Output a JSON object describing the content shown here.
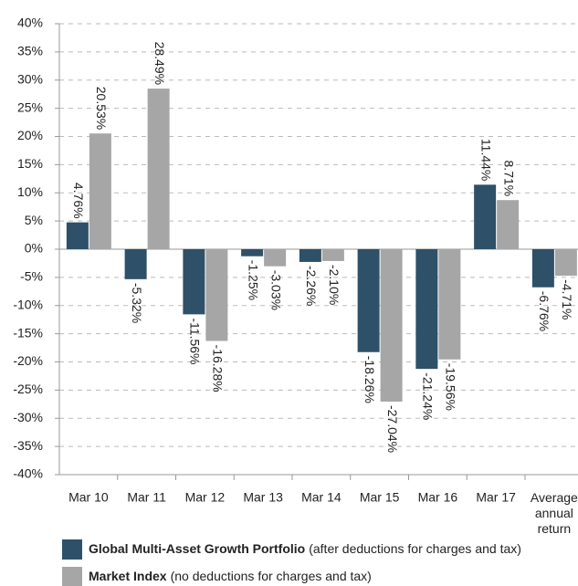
{
  "chart_data": {
    "type": "bar",
    "categories": [
      "Mar 10",
      "Mar 11",
      "Mar 12",
      "Mar 13",
      "Mar 14",
      "Mar 15",
      "Mar 16",
      "Mar 17",
      "Average annual return"
    ],
    "series": [
      {
        "name": "Global Multi-Asset Growth Portfolio",
        "note": "(after deductions for charges and tax)",
        "color": "#2e5068",
        "values": [
          4.76,
          -5.32,
          -11.56,
          -1.25,
          -2.26,
          -18.26,
          -21.24,
          11.44,
          -6.76
        ],
        "value_labels": [
          "4.76%",
          "-5.32%",
          "-11.56%",
          "-1.25%",
          "-2.26%",
          "-18.26%",
          "-21.24%",
          "11.44%",
          "-6.76%"
        ]
      },
      {
        "name": "Market Index",
        "note": "(no deductions for charges and tax)",
        "color": "#a6a6a6",
        "values": [
          20.53,
          28.49,
          -16.28,
          -3.03,
          -2.1,
          -27.04,
          -19.56,
          8.71,
          -4.71
        ],
        "value_labels": [
          "20.53%",
          "28.49%",
          "-16.28%",
          "-3.03%",
          "-2.10%",
          "-27.04%",
          "-19.56%",
          "8.71%",
          "-4.71%"
        ]
      }
    ],
    "ylim": [
      -40,
      40
    ],
    "yticks": [
      {
        "value": -40,
        "label": "-40%"
      },
      {
        "value": -35,
        "label": "-35%"
      },
      {
        "value": -30,
        "label": "-30%"
      },
      {
        "value": -25,
        "label": "-25%"
      },
      {
        "value": -20,
        "label": "-20%"
      },
      {
        "value": -15,
        "label": "-15%"
      },
      {
        "value": -10,
        "label": "-10%"
      },
      {
        "value": -5,
        "label": "-5%"
      },
      {
        "value": 0,
        "label": "0%"
      },
      {
        "value": 5,
        "label": "5%"
      },
      {
        "value": 10,
        "label": "10%"
      },
      {
        "value": 15,
        "label": "15%"
      },
      {
        "value": 20,
        "label": "20%"
      },
      {
        "value": 25,
        "label": "25%"
      },
      {
        "value": 30,
        "label": "30%"
      },
      {
        "value": 35,
        "label": "35%"
      },
      {
        "value": 40,
        "label": "40%"
      }
    ],
    "grid": true
  }
}
